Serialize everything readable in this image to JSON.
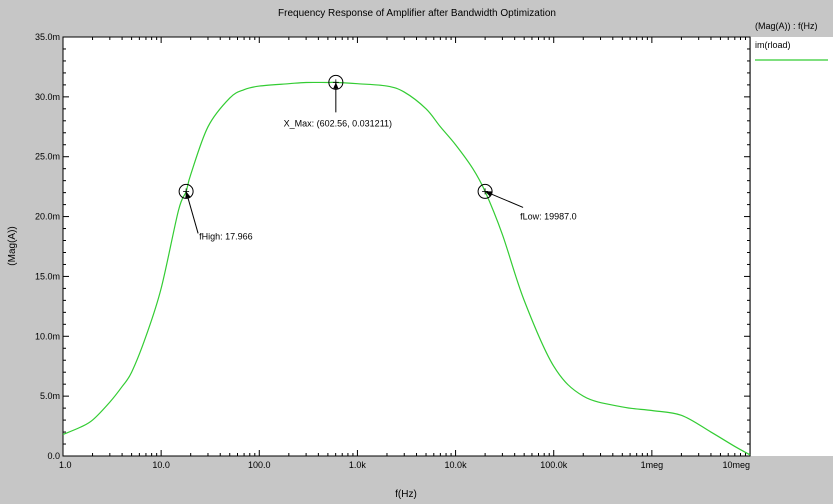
{
  "chart_data": {
    "type": "line",
    "title": "Frequency Response of Amplifier after Bandwidth Optimization",
    "xlabel": "f(Hz)",
    "ylabel": "(Mag(A))",
    "x_scale": "log",
    "xlim": [
      1,
      10000000
    ],
    "ylim": [
      0,
      0.035
    ],
    "grid": false,
    "legend": {
      "placement": "right",
      "header": "(Mag(A)) : f(Hz)"
    },
    "x_ticks": [
      {
        "value": 1,
        "label": "1.0"
      },
      {
        "value": 10,
        "label": "10.0"
      },
      {
        "value": 100,
        "label": "100.0"
      },
      {
        "value": 1000,
        "label": "1.0k"
      },
      {
        "value": 10000,
        "label": "10.0k"
      },
      {
        "value": 100000,
        "label": "100.0k"
      },
      {
        "value": 1000000,
        "label": "1meg"
      },
      {
        "value": 10000000,
        "label": "10meg"
      }
    ],
    "y_ticks": [
      {
        "value": 0,
        "label": "0.0"
      },
      {
        "value": 0.005,
        "label": "5.0m"
      },
      {
        "value": 0.01,
        "label": "10.0m"
      },
      {
        "value": 0.015,
        "label": "15.0m"
      },
      {
        "value": 0.02,
        "label": "20.0m"
      },
      {
        "value": 0.025,
        "label": "25.0m"
      },
      {
        "value": 0.03,
        "label": "30.0m"
      },
      {
        "value": 0.035,
        "label": "35.0m"
      }
    ],
    "series": [
      {
        "name": "im(rload)",
        "color": "#33cc33",
        "x": [
          1,
          1.5,
          2,
          3,
          4,
          5,
          7,
          10,
          15,
          17.966,
          20,
          30,
          50,
          70,
          100,
          200,
          300,
          500,
          602.56,
          1000,
          2000,
          3000,
          5000,
          7000,
          10000,
          15000,
          19987,
          30000,
          50000,
          100000,
          200000,
          500000,
          1000000,
          2000000,
          4000000,
          7000000,
          10000000
        ],
        "y": [
          0.0018,
          0.0024,
          0.003,
          0.0045,
          0.0058,
          0.007,
          0.01,
          0.014,
          0.0205,
          0.0221,
          0.0235,
          0.0275,
          0.0299,
          0.0306,
          0.0309,
          0.0311,
          0.0312,
          0.0312,
          0.031211,
          0.0311,
          0.0309,
          0.0304,
          0.029,
          0.0275,
          0.026,
          0.024,
          0.0221,
          0.0185,
          0.013,
          0.0075,
          0.005,
          0.0041,
          0.0038,
          0.0034,
          0.002,
          0.0008,
          0.0001
        ]
      }
    ],
    "annotations": [
      {
        "label": "fHigh: 17.966",
        "x": 17.966,
        "y": 0.0221
      },
      {
        "label": "X_Max: (602.56, 0.031211)",
        "x": 602.56,
        "y": 0.031211
      },
      {
        "label": "fLow: 19987.0",
        "x": 19987,
        "y": 0.0221
      }
    ]
  }
}
